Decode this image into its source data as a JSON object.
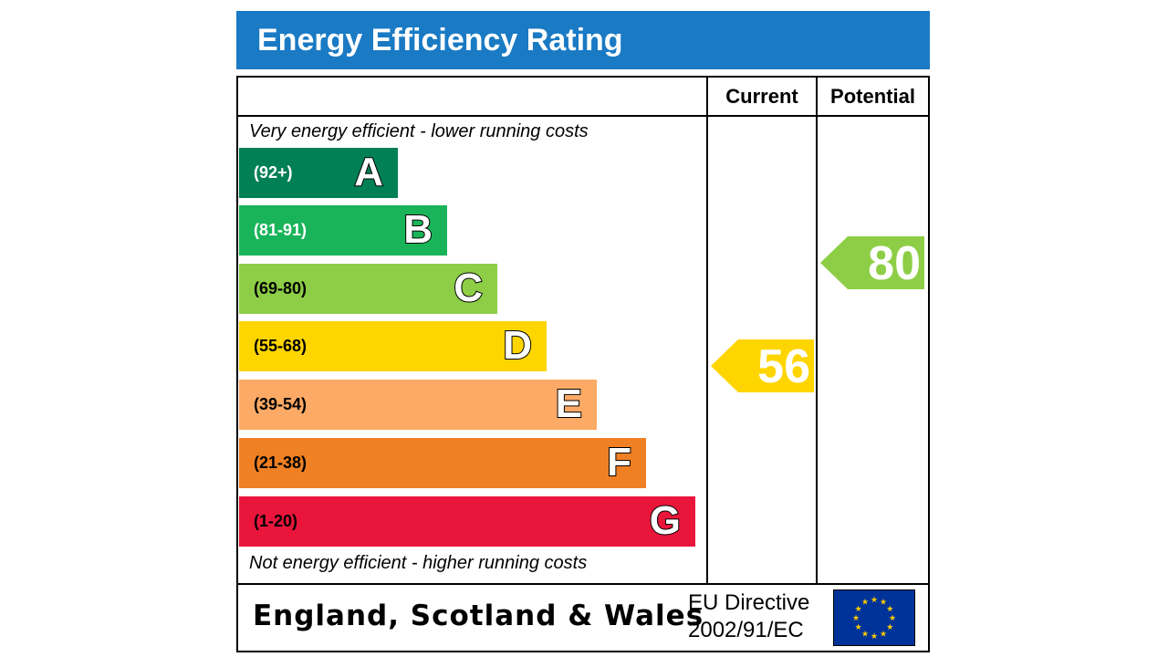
{
  "header": {
    "title": "Energy Efficiency Rating"
  },
  "columns": {
    "current": "Current",
    "potential": "Potential"
  },
  "notes": {
    "top": "Very energy efficient - lower running costs",
    "bottom": "Not energy efficient - higher running costs"
  },
  "bands": [
    {
      "letter": "A",
      "range": "(92+)",
      "color": "#008054",
      "range_color": "#ffffff"
    },
    {
      "letter": "B",
      "range": "(81-91)",
      "color": "#19b459",
      "range_color": "#ffffff"
    },
    {
      "letter": "C",
      "range": "(69-80)",
      "color": "#8dce46",
      "range_color": "#000000"
    },
    {
      "letter": "D",
      "range": "(55-68)",
      "color": "#ffd500",
      "range_color": "#000000"
    },
    {
      "letter": "E",
      "range": "(39-54)",
      "color": "#fcaa65",
      "range_color": "#000000"
    },
    {
      "letter": "F",
      "range": "(21-38)",
      "color": "#ef8023",
      "range_color": "#000000"
    },
    {
      "letter": "G",
      "range": "(1-20)",
      "color": "#e9153b",
      "range_color": "#000000"
    }
  ],
  "current": {
    "value": "56",
    "color": "#ffd500"
  },
  "potential": {
    "value": "80",
    "color": "#8dce46"
  },
  "footer": {
    "region": "England, Scotland & Wales",
    "directive_line1": "EU Directive",
    "directive_line2": "2002/91/EC",
    "flag_icon": "eu-flag-icon"
  }
}
